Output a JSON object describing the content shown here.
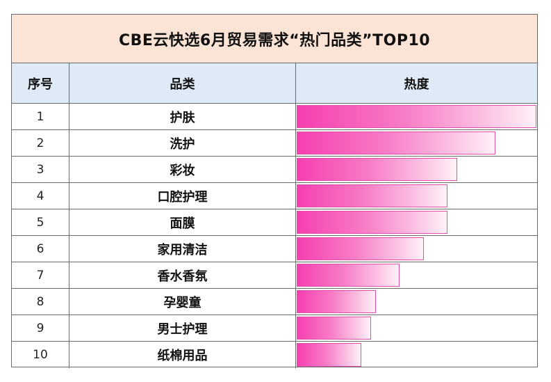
{
  "chart_data": {
    "type": "table",
    "title": "CBE云快选6月贸易需求“热门品类”TOP10",
    "columns": [
      "序号",
      "品类",
      "热度"
    ],
    "rows": [
      {
        "rank": "1",
        "category": "护肤",
        "heat": 100
      },
      {
        "rank": "2",
        "category": "洗护",
        "heat": 83
      },
      {
        "rank": "3",
        "category": "彩妆",
        "heat": 67
      },
      {
        "rank": "4",
        "category": "口腔护理",
        "heat": 63
      },
      {
        "rank": "5",
        "category": "面膜",
        "heat": 63
      },
      {
        "rank": "6",
        "category": "家用清洁",
        "heat": 53
      },
      {
        "rank": "7",
        "category": "香水香氛",
        "heat": 43
      },
      {
        "rank": "8",
        "category": "孕婴童",
        "heat": 33
      },
      {
        "rank": "9",
        "category": "男士护理",
        "heat": 31
      },
      {
        "rank": "10",
        "category": "纸棉用品",
        "heat": 27
      }
    ],
    "heat_max": 100,
    "bar_colors": [
      "#f53fb0",
      "#fff1f8"
    ],
    "title_background": "#fbe4d5",
    "header_background": "#deebf7"
  }
}
